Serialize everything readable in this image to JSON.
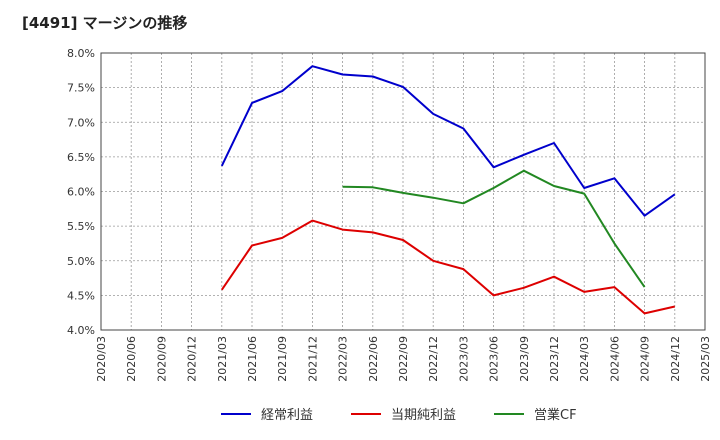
{
  "chart_data": {
    "type": "line",
    "title": "[4491]  マージンの推移",
    "x": [
      "2020/03",
      "2020/06",
      "2020/09",
      "2020/12",
      "2021/03",
      "2021/06",
      "2021/09",
      "2021/12",
      "2022/03",
      "2022/06",
      "2022/09",
      "2022/12",
      "2023/03",
      "2023/06",
      "2023/09",
      "2023/12",
      "2024/03",
      "2024/06",
      "2024/09",
      "2024/12",
      "2025/03"
    ],
    "yticks": [
      "4.0%",
      "4.5%",
      "5.0%",
      "5.5%",
      "6.0%",
      "6.5%",
      "7.0%",
      "7.5%",
      "8.0%"
    ],
    "ylim": [
      4.0,
      8.0
    ],
    "grid": true,
    "legend_position": "bottom",
    "series": [
      {
        "name": "経常利益",
        "color": "#0000cc",
        "values": [
          null,
          null,
          null,
          null,
          6.37,
          7.28,
          7.45,
          7.81,
          7.69,
          7.66,
          7.51,
          7.12,
          6.91,
          6.35,
          6.53,
          6.7,
          6.05,
          6.19,
          5.65,
          5.96,
          null
        ]
      },
      {
        "name": "当期純利益",
        "color": "#dd0000",
        "values": [
          null,
          null,
          null,
          null,
          4.58,
          5.22,
          5.33,
          5.58,
          5.45,
          5.41,
          5.3,
          5.0,
          4.88,
          4.5,
          4.61,
          4.77,
          4.55,
          4.62,
          4.24,
          4.34,
          null
        ]
      },
      {
        "name": "営業CF",
        "color": "#228822",
        "values": [
          null,
          null,
          null,
          null,
          null,
          null,
          null,
          null,
          6.07,
          6.06,
          5.98,
          5.91,
          5.83,
          6.05,
          6.3,
          6.08,
          5.97,
          5.25,
          4.62,
          null,
          null
        ]
      }
    ]
  }
}
